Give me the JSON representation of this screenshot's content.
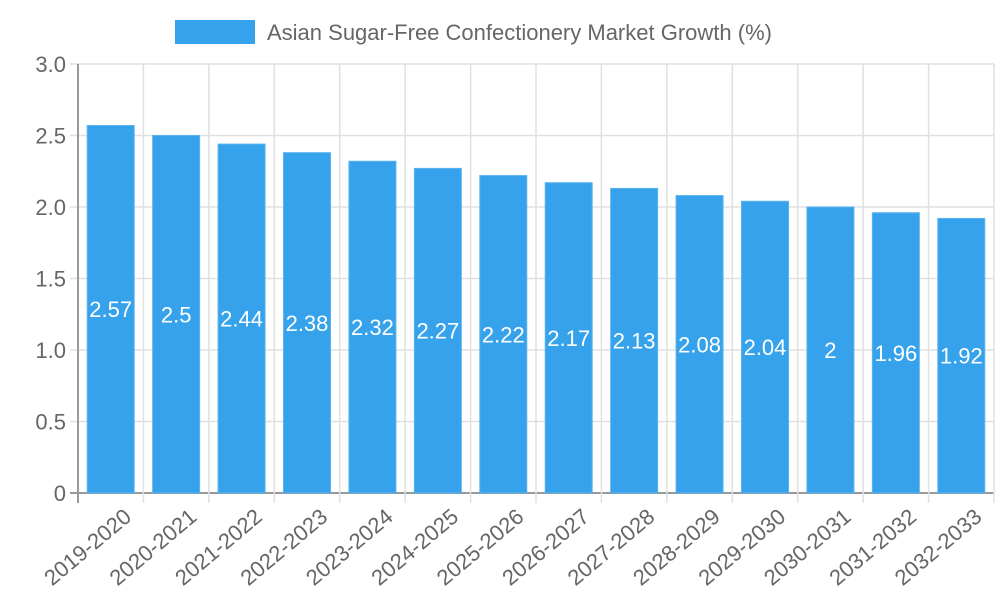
{
  "chart_data": {
    "type": "bar",
    "title": "",
    "xlabel": "",
    "ylabel": "",
    "legend": {
      "position": "top",
      "entries": [
        "Asian Sugar-Free Confectionery Market Growth (%)"
      ]
    },
    "categories": [
      "2019-2020",
      "2020-2021",
      "2021-2022",
      "2022-2023",
      "2023-2024",
      "2024-2025",
      "2025-2026",
      "2026-2027",
      "2027-2028",
      "2028-2029",
      "2029-2030",
      "2030-2031",
      "2031-2032",
      "2032-2033"
    ],
    "series": [
      {
        "name": "Asian Sugar-Free Confectionery Market Growth (%)",
        "values": [
          2.57,
          2.5,
          2.44,
          2.38,
          2.32,
          2.27,
          2.22,
          2.17,
          2.13,
          2.08,
          2.04,
          2,
          1.96,
          1.92
        ],
        "color": "#36a2eb"
      }
    ],
    "value_labels": [
      "2.57",
      "2.5",
      "2.44",
      "2.38",
      "2.32",
      "2.27",
      "2.22",
      "2.17",
      "2.13",
      "2.08",
      "2.04",
      "2",
      "1.96",
      "1.92"
    ],
    "ylim": [
      0,
      3.0
    ],
    "yticks": [
      "0",
      "0.5",
      "1.0",
      "1.5",
      "2.0",
      "2.5",
      "3.0"
    ],
    "grid": true
  },
  "colors": {
    "bar": "#36a2eb",
    "grid": "#e0e0e0",
    "axis": "#999999",
    "text": "#666666",
    "label": "#ffffff"
  }
}
